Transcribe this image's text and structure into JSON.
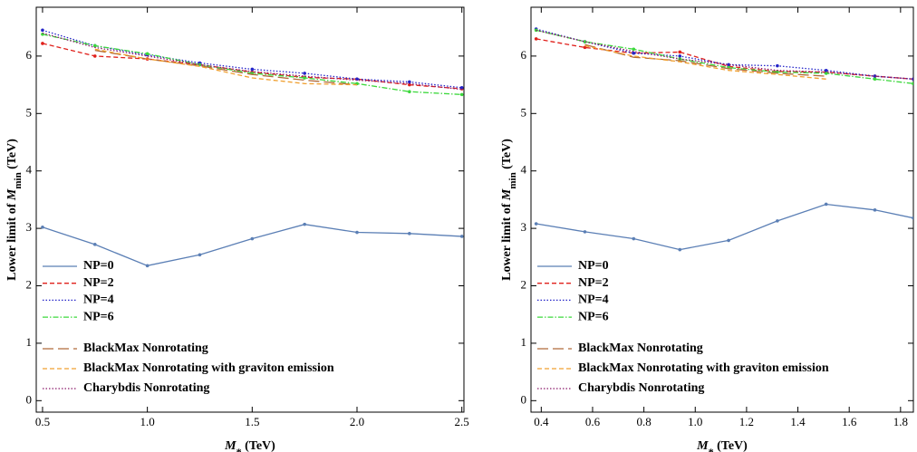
{
  "chart_data": [
    {
      "type": "line",
      "ylabel": [
        "Lower limit of ",
        "M",
        "min",
        " (TeV)"
      ],
      "xlabel": [
        "M",
        "*",
        " (TeV)"
      ],
      "x": [
        0.5,
        0.75,
        1.0,
        1.25,
        1.5,
        1.75,
        2.0,
        2.25,
        2.5
      ],
      "xlim": [
        0.47,
        2.51
      ],
      "ylim": [
        -0.2,
        6.85
      ],
      "xticks": [
        0.5,
        {
          "value": 1,
          "label": "1.0"
        },
        1.5,
        {
          "value": 2,
          "label": "2.0"
        },
        2.5
      ],
      "yticks": [
        0,
        1,
        2,
        3,
        4,
        5,
        6
      ],
      "series": [
        {
          "name": "NP=0",
          "color": "#5b7fb5",
          "style": "solid",
          "markers": true,
          "values": [
            3.02,
            2.72,
            2.35,
            2.54,
            2.82,
            3.07,
            2.93,
            2.91,
            2.86
          ]
        },
        {
          "name": "NP=2",
          "color": "#e0201b",
          "style": "dashed",
          "markers": true,
          "values": [
            6.22,
            6.0,
            5.95,
            5.85,
            5.72,
            5.63,
            5.6,
            5.5,
            5.43
          ]
        },
        {
          "name": "NP=4",
          "color": "#2424c8",
          "style": "dotted",
          "markers": true,
          "values": [
            6.45,
            6.18,
            6.02,
            5.88,
            5.77,
            5.7,
            5.6,
            5.55,
            5.45
          ]
        },
        {
          "name": "NP=6",
          "color": "#3cd83c",
          "style": "dashdot",
          "markers": true,
          "values": [
            6.38,
            6.18,
            6.04,
            5.85,
            5.7,
            5.62,
            5.52,
            5.38,
            5.33
          ]
        },
        {
          "name": "BlackMax Nonrotating",
          "color": "#b06a3a",
          "style": "longdash",
          "markers": false,
          "values": [
            null,
            6.1,
            5.95,
            5.83,
            5.68,
            5.58,
            5.5,
            null,
            null
          ]
        },
        {
          "name": "BlackMax Nonrotating with graviton emission",
          "color": "#f0a030",
          "style": "dashed",
          "markers": false,
          "values": [
            null,
            6.12,
            5.95,
            5.82,
            5.62,
            5.52,
            5.5,
            null,
            null
          ]
        },
        {
          "name": "Charybdis Nonrotating",
          "color": "#8b1a6b",
          "style": "dotted",
          "markers": false,
          "values": [
            6.4,
            6.15,
            6.0,
            5.85,
            5.73,
            5.65,
            5.58,
            5.52,
            5.42
          ]
        }
      ]
    },
    {
      "type": "line",
      "ylabel": [
        "Lower limit of ",
        "M",
        "min",
        " (TeV)"
      ],
      "xlabel": [
        "M",
        "*",
        " (TeV)"
      ],
      "x": [
        0.38,
        0.57,
        0.76,
        0.94,
        1.13,
        1.32,
        1.51,
        1.7,
        1.85
      ],
      "xlim": [
        0.36,
        1.85
      ],
      "ylim": [
        -0.2,
        6.85
      ],
      "xticks": [
        0.4,
        0.6,
        0.8,
        {
          "value": 1,
          "label": "1.0"
        },
        1.2,
        1.4,
        1.6,
        1.8
      ],
      "yticks": [
        0,
        1,
        2,
        3,
        4,
        5,
        6
      ],
      "series": [
        {
          "name": "NP=0",
          "color": "#5b7fb5",
          "style": "solid",
          "markers": true,
          "values": [
            3.08,
            2.94,
            2.82,
            2.63,
            2.79,
            3.13,
            3.42,
            3.32,
            3.18
          ]
        },
        {
          "name": "NP=2",
          "color": "#e0201b",
          "style": "dashed",
          "markers": true,
          "values": [
            6.3,
            6.15,
            6.05,
            6.07,
            5.82,
            5.73,
            5.72,
            5.65,
            5.6
          ]
        },
        {
          "name": "NP=4",
          "color": "#2424c8",
          "style": "dotted",
          "markers": true,
          "values": [
            6.47,
            6.25,
            6.05,
            6.0,
            5.85,
            5.83,
            5.75,
            5.65,
            5.6
          ]
        },
        {
          "name": "NP=6",
          "color": "#3cd83c",
          "style": "dashdot",
          "markers": true,
          "values": [
            6.45,
            6.25,
            6.12,
            5.95,
            5.8,
            5.72,
            5.7,
            5.6,
            5.52
          ]
        },
        {
          "name": "BlackMax Nonrotating",
          "color": "#b06a3a",
          "style": "longdash",
          "markers": false,
          "values": [
            null,
            6.2,
            5.98,
            5.92,
            5.78,
            5.7,
            5.65,
            null,
            null
          ]
        },
        {
          "name": "BlackMax Nonrotating with graviton emission",
          "color": "#f0a030",
          "style": "dashed",
          "markers": false,
          "values": [
            null,
            6.18,
            6.0,
            5.9,
            5.75,
            5.68,
            5.6,
            null,
            null
          ]
        },
        {
          "name": "Charybdis Nonrotating",
          "color": "#8b1a6b",
          "style": "dotted",
          "markers": false,
          "values": [
            6.45,
            6.25,
            6.08,
            5.95,
            5.85,
            5.75,
            5.72,
            5.65,
            5.6
          ]
        }
      ]
    }
  ]
}
